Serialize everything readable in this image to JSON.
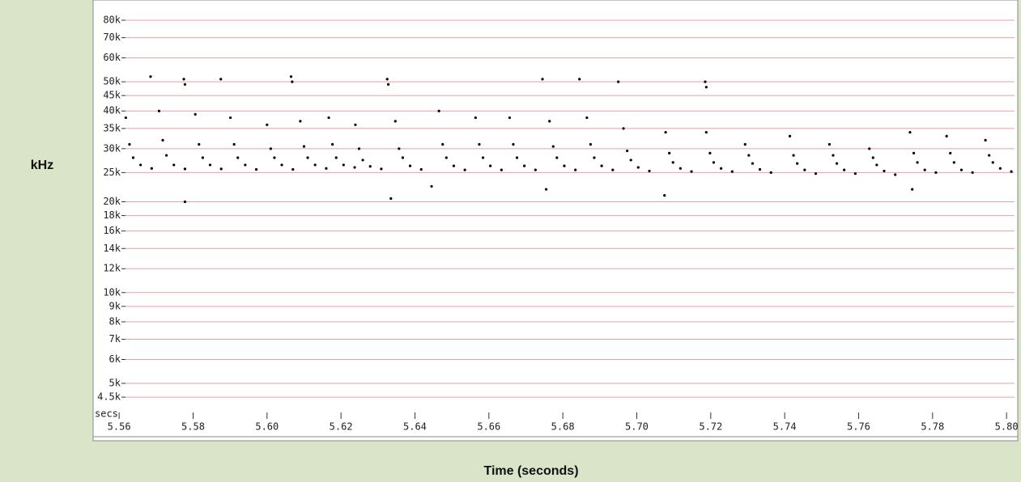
{
  "chart_data": {
    "type": "scatter",
    "xlabel": "Time (seconds)",
    "ylabel": "kHz",
    "x_unit_label": "secs",
    "log_y": true,
    "grid": true,
    "grid_color": "#e8a0a8",
    "xlim": [
      5.5534,
      5.8026
    ],
    "ylim": [
      4.13,
      90.5
    ],
    "xticks": [
      5.56,
      5.58,
      {
        "value": 5.6,
        "label": "5.60"
      },
      5.62,
      5.64,
      5.66,
      5.68,
      {
        "value": 5.7,
        "label": "5.70"
      },
      5.72,
      5.74,
      5.76,
      5.78,
      {
        "value": 5.8,
        "label": "5.80"
      }
    ],
    "yticks": [
      {
        "value": 80,
        "label": "80k"
      },
      {
        "value": 70,
        "label": "70k"
      },
      {
        "value": 60,
        "label": "60k"
      },
      {
        "value": 50,
        "label": "50k"
      },
      {
        "value": 45,
        "label": "45k"
      },
      {
        "value": 40,
        "label": "40k"
      },
      {
        "value": 35,
        "label": "35k"
      },
      {
        "value": 30,
        "label": "30k"
      },
      {
        "value": 25,
        "label": "25k"
      },
      {
        "value": 20,
        "label": "20k"
      },
      {
        "value": 18,
        "label": "18k"
      },
      {
        "value": 16,
        "label": "16k"
      },
      {
        "value": 14,
        "label": "14k"
      },
      {
        "value": 12,
        "label": "12k"
      },
      {
        "value": 10,
        "label": "10k"
      },
      {
        "value": 9,
        "label": "9k"
      },
      {
        "value": 8,
        "label": "8k"
      },
      {
        "value": 7,
        "label": "7k"
      },
      {
        "value": 6,
        "label": "6k"
      },
      {
        "value": 5,
        "label": "5k"
      },
      {
        "value": 4.5,
        "label": "4.5k"
      }
    ],
    "series": [
      {
        "color": "#000000",
        "x": [
          5.5618,
          5.5628,
          5.5638,
          5.5658,
          5.5688,
          5.5708,
          5.5718,
          5.5728,
          5.5748,
          5.5778,
          5.5806,
          5.5816,
          5.5826,
          5.5846,
          5.5876,
          5.5901,
          5.5911,
          5.5921,
          5.5941,
          5.5971,
          5.6,
          5.601,
          5.602,
          5.604,
          5.607,
          5.609,
          5.61,
          5.611,
          5.613,
          5.616,
          5.6167,
          5.6177,
          5.6187,
          5.6207,
          5.6237,
          5.6239,
          5.6249,
          5.6259,
          5.6279,
          5.6309,
          5.6347,
          5.6357,
          5.6367,
          5.6387,
          5.6417,
          5.6465,
          5.6475,
          5.6485,
          5.6505,
          5.6535,
          5.6564,
          5.6574,
          5.6584,
          5.6604,
          5.6634,
          5.6656,
          5.6666,
          5.6676,
          5.6696,
          5.6726,
          5.6764,
          5.6774,
          5.6784,
          5.6804,
          5.6834,
          5.6865,
          5.6875,
          5.6885,
          5.6905,
          5.6935,
          5.6964,
          5.6974,
          5.6984,
          5.7004,
          5.7034,
          5.7078,
          5.7088,
          5.7098,
          5.7118,
          5.7148,
          5.7188,
          5.7198,
          5.7208,
          5.7228,
          5.7258,
          5.7293,
          5.7303,
          5.7313,
          5.7333,
          5.7363,
          5.7414,
          5.7424,
          5.7434,
          5.7454,
          5.7484,
          5.7521,
          5.7531,
          5.7541,
          5.7561,
          5.7591,
          5.7629,
          5.7639,
          5.7649,
          5.7669,
          5.7699,
          5.7739,
          5.7749,
          5.7759,
          5.7779,
          5.7809,
          5.7838,
          5.7848,
          5.7858,
          5.7878,
          5.7908,
          5.7943,
          5.7953,
          5.7963,
          5.7983,
          5.8013
        ],
        "values": [
          38,
          31,
          28,
          26.5,
          25.8,
          40,
          32,
          28.5,
          26.5,
          25.7,
          39,
          31,
          28,
          26.5,
          25.7,
          38,
          31,
          28,
          26.5,
          25.6,
          36,
          30,
          28,
          26.5,
          25.6,
          37,
          30.5,
          28,
          26.5,
          25.8,
          38,
          31,
          28,
          26.5,
          26,
          36,
          30,
          27.5,
          26.2,
          25.7,
          37,
          30,
          28,
          26.3,
          25.6,
          40,
          31,
          28,
          26.3,
          25.5,
          38,
          31,
          28,
          26.3,
          25.5,
          38,
          31,
          28,
          26.3,
          25.5,
          37,
          30.5,
          28,
          26.3,
          25.5,
          38,
          31,
          28,
          26.3,
          25.5,
          35,
          29.5,
          27.5,
          26,
          25.3,
          34,
          29,
          27,
          25.8,
          25.2,
          34,
          29,
          27,
          25.8,
          25.2,
          31,
          28.5,
          26.8,
          25.6,
          25,
          33,
          28.5,
          26.8,
          25.5,
          24.8,
          31,
          28.5,
          26.8,
          25.5,
          24.8,
          30,
          28,
          26.5,
          25.3,
          24.6,
          34,
          29,
          27,
          25.5,
          25,
          33,
          29,
          27,
          25.5,
          25,
          32,
          28.5,
          27,
          25.8,
          25.2
        ]
      },
      {
        "color": "#000000",
        "x": [
          5.5685,
          5.5775,
          5.5778,
          5.5875,
          5.6065,
          5.6068,
          5.6325,
          5.6328,
          5.6745,
          5.6845,
          5.695,
          5.7185,
          5.7188,
          5.5778,
          5.6335,
          5.6445,
          5.6755,
          5.7075,
          5.7745
        ],
        "values": [
          52,
          51,
          49,
          51,
          52,
          50,
          51,
          49,
          51,
          51,
          50,
          50,
          48,
          20,
          20.5,
          22.5,
          22,
          21,
          22
        ]
      }
    ]
  }
}
